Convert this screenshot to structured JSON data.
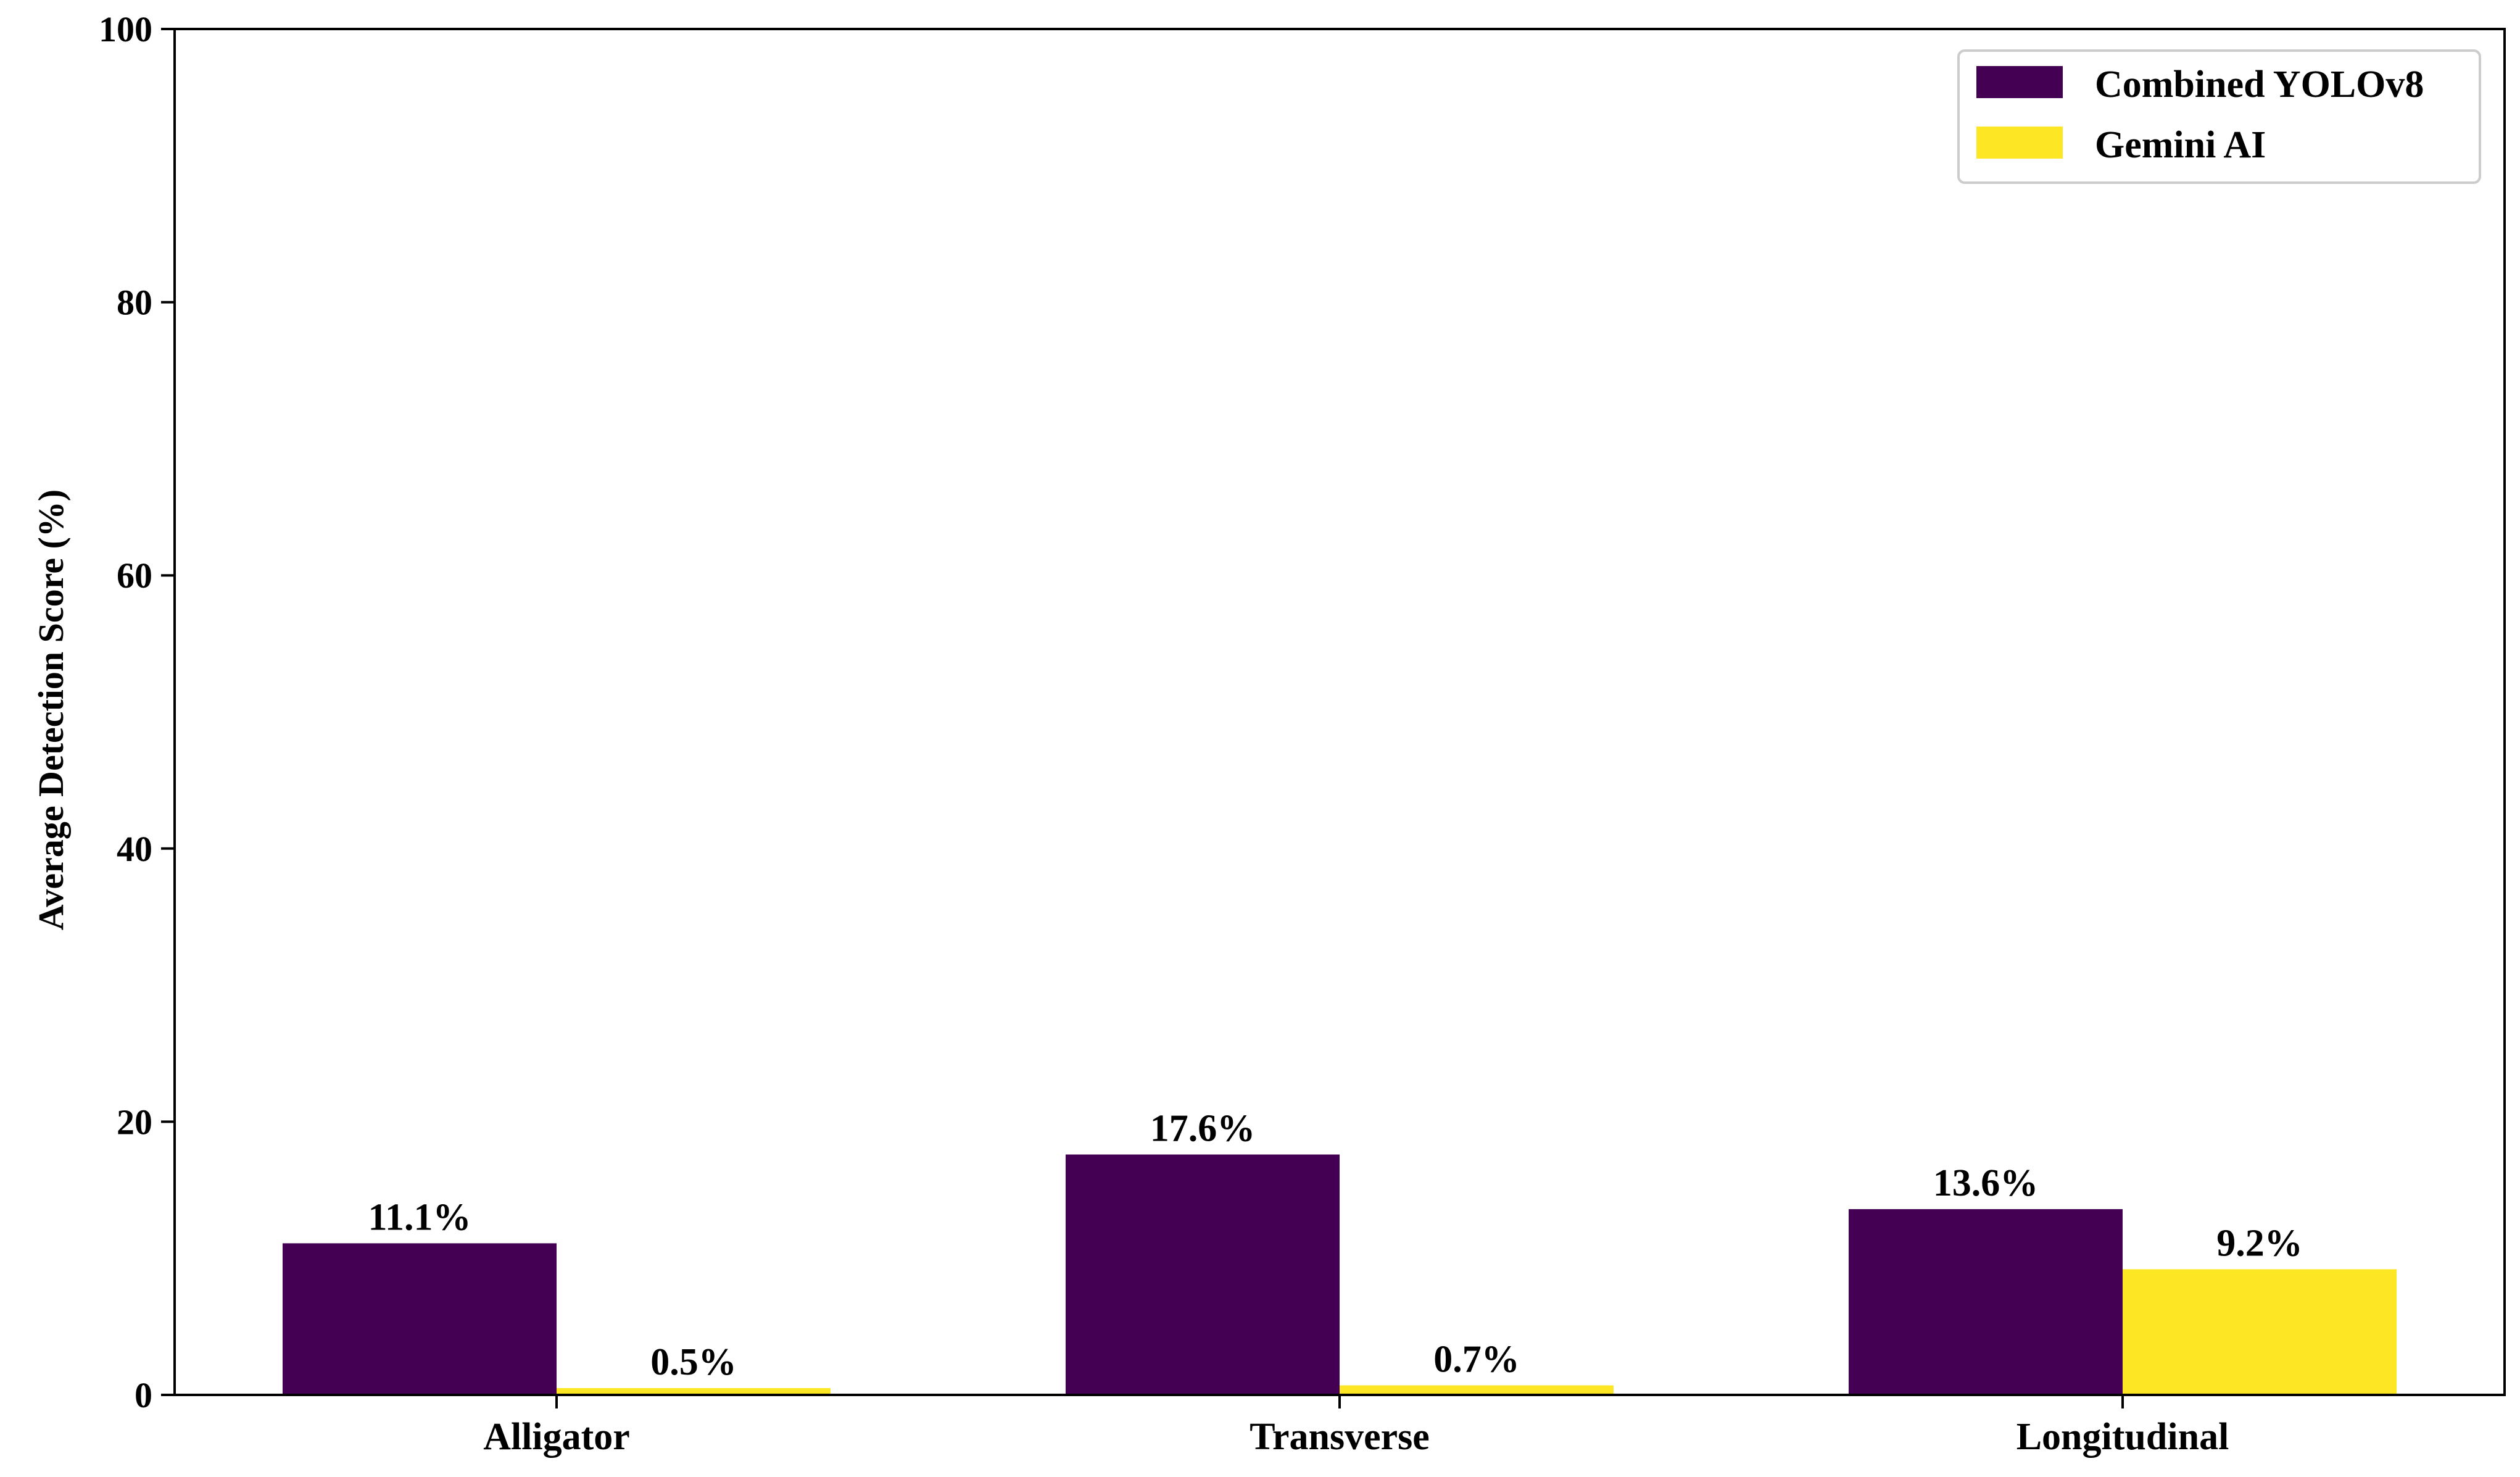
{
  "chart_data": {
    "type": "bar",
    "categories": [
      "Alligator",
      "Transverse",
      "Longitudinal"
    ],
    "series": [
      {
        "name": "Combined YOLOv8",
        "values": [
          11.1,
          17.6,
          13.6
        ],
        "labels": [
          "11.1%",
          "17.6%",
          "13.6%"
        ],
        "color": "#440154"
      },
      {
        "name": "Gemini AI",
        "values": [
          0.5,
          0.7,
          9.2
        ],
        "labels": [
          "0.5%",
          "0.7%",
          "9.2%"
        ],
        "color": "#FDE725"
      }
    ],
    "ylabel": "Average Detection Score (%)",
    "xlabel": "",
    "ylim": [
      0,
      100
    ],
    "yticks": [
      0,
      20,
      40,
      60,
      80,
      100
    ],
    "grid": false,
    "legend_position": "top-right"
  }
}
